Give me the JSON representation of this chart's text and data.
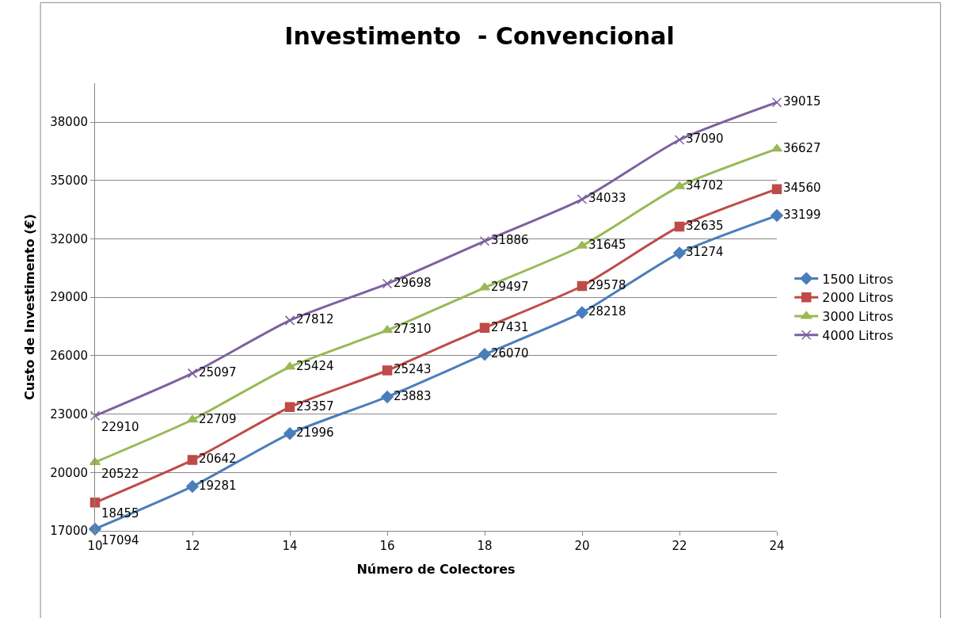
{
  "chart_data": {
    "type": "line",
    "title": "Investimento  - Convencional",
    "xlabel": "Número de Colectores",
    "ylabel": "Custo de Investimento (€)",
    "x": [
      10,
      12,
      14,
      16,
      18,
      20,
      22,
      24
    ],
    "series": [
      {
        "name": "1500 Litros",
        "color": "#4a7ebb",
        "marker": "diamond",
        "values": [
          17094,
          19281,
          21996,
          23883,
          26070,
          28218,
          31274,
          33199
        ]
      },
      {
        "name": "2000 Litros",
        "color": "#be4b48",
        "marker": "square",
        "values": [
          18455,
          20642,
          23357,
          25243,
          27431,
          29578,
          32635,
          34560
        ]
      },
      {
        "name": "3000 Litros",
        "color": "#98b954",
        "marker": "triangle",
        "values": [
          20522,
          22709,
          25424,
          27310,
          29497,
          31645,
          34702,
          36627
        ]
      },
      {
        "name": "4000 Litros",
        "color": "#7d60a0",
        "marker": "cross",
        "values": [
          22910,
          25097,
          27812,
          29698,
          31886,
          34033,
          37090,
          39015
        ]
      }
    ],
    "xlim": [
      10,
      24
    ],
    "xticks": [
      10,
      12,
      14,
      16,
      18,
      20,
      22,
      24
    ],
    "ylim": [
      17000,
      40000
    ],
    "yticks": [
      17000,
      20000,
      23000,
      26000,
      29000,
      32000,
      35000,
      38000
    ],
    "grid": "y",
    "legend": "right",
    "data_labels": true,
    "line_style": "solid"
  }
}
